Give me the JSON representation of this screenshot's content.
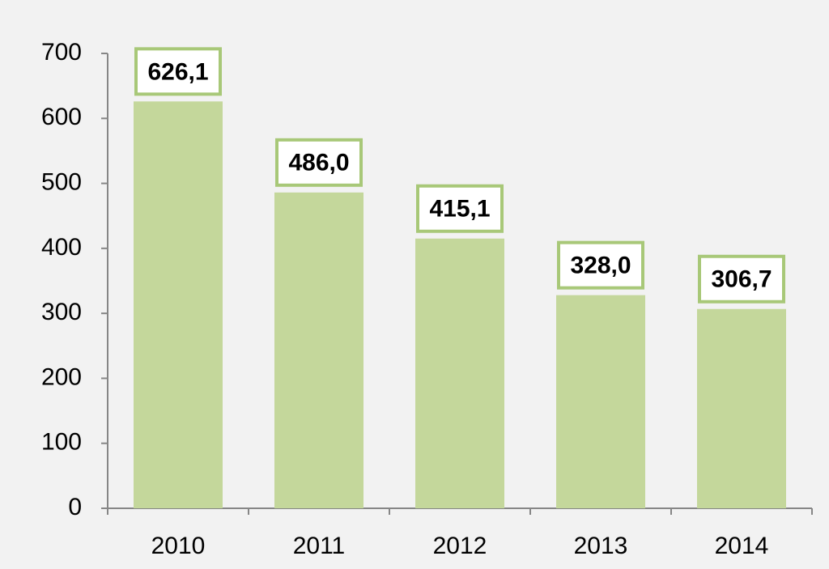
{
  "chart_data": {
    "type": "bar",
    "categories": [
      "2010",
      "2011",
      "2012",
      "2013",
      "2014"
    ],
    "values": [
      626.1,
      486.0,
      415.1,
      328.0,
      306.7
    ],
    "value_labels": [
      "626,1",
      "486,0",
      "415,1",
      "328,0",
      "306,7"
    ],
    "color": "#c4d79b",
    "ylim": [
      0,
      700
    ],
    "yticks": [
      0,
      100,
      200,
      300,
      400,
      500,
      600,
      700
    ]
  }
}
